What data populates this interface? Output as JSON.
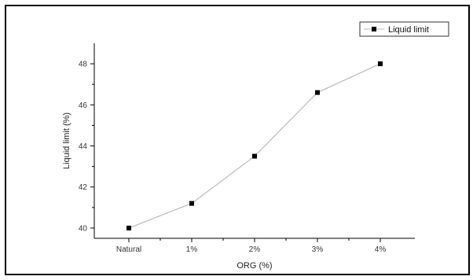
{
  "chart_data": {
    "type": "line",
    "title": "",
    "xlabel": "ORG (%)",
    "ylabel": "Liquid limit (%)",
    "categories": [
      "Natural",
      "1%",
      "2%",
      "3%",
      "4%"
    ],
    "series": [
      {
        "name": "Liquid limit",
        "values": [
          40.0,
          41.2,
          43.5,
          46.6,
          48.0
        ]
      }
    ],
    "ylim": [
      39.5,
      49.0
    ],
    "yticks": [
      "40",
      "42",
      "44",
      "46",
      "48"
    ],
    "grid": false,
    "legend_position": "top-right",
    "colors": {
      "line": "#bbbbbb",
      "marker": "#000000",
      "axis": "#000000"
    }
  }
}
